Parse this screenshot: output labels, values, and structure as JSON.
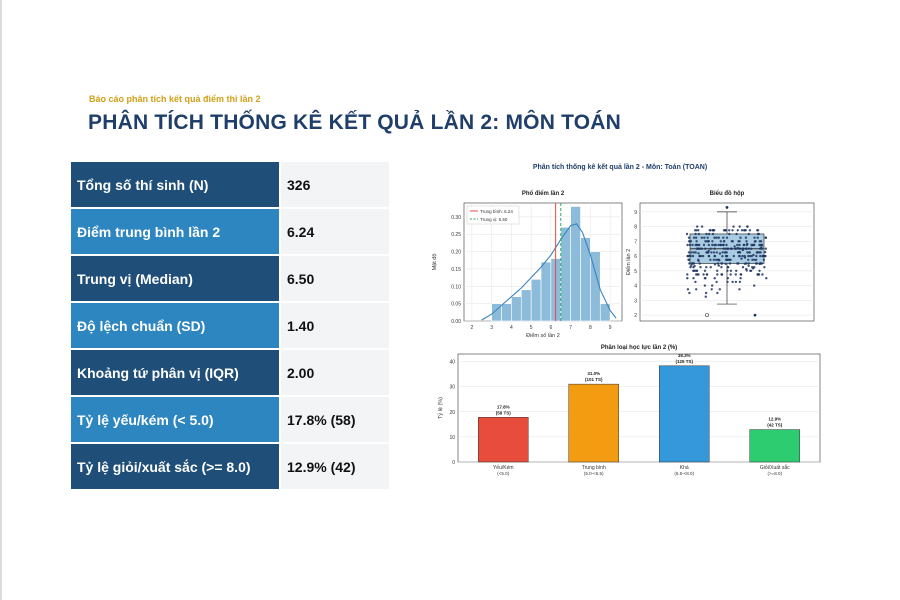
{
  "header": {
    "supertitle": "Báo cáo phân tích kết quả điểm thi lần 2",
    "title": "PHÂN TÍCH THỐNG KÊ KẾT QUẢ LẦN 2: MÔN TOÁN"
  },
  "stats": [
    {
      "label": "Tổng số thí sinh (N)",
      "value": "326",
      "color": "#1f4e79"
    },
    {
      "label": "Điểm trung bình lần 2",
      "value": "6.24",
      "color": "#2e86c1"
    },
    {
      "label": "Trung vị (Median)",
      "value": "6.50",
      "color": "#1f4e79"
    },
    {
      "label": "Độ lệch chuẩn (SD)",
      "value": "1.40",
      "color": "#2e86c1"
    },
    {
      "label": "Khoảng tứ phân vị (IQR)",
      "value": "2.00",
      "color": "#1f4e79"
    },
    {
      "label": "Tỷ lệ yếu/kém (< 5.0)",
      "value": "17.8% (58)",
      "color": "#2e86c1"
    },
    {
      "label": "Tỷ lệ giỏi/xuất sắc (>= 8.0)",
      "value": "12.9% (42)",
      "color": "#1f4e79"
    }
  ],
  "figure_title": "Phân tích thống kê kết quả lần 2 - Môn: Toán (TOAN)",
  "chart_data": [
    {
      "type": "bar",
      "title": "Phổ điểm lần 2",
      "xlabel": "Điểm số lần 2",
      "ylabel": "Mật độ",
      "x_ticks": [
        2,
        3,
        4,
        5,
        6,
        7,
        8,
        9
      ],
      "y_ticks": [
        0.0,
        0.05,
        0.1,
        0.15,
        0.2,
        0.25,
        0.3
      ],
      "y_tick_labels": [
        "0.00",
        "0.05",
        "0.10",
        "0.15",
        "0.20",
        "0.25",
        "0.30"
      ],
      "xlim": [
        1.6,
        9.6
      ],
      "ylim": [
        0,
        0.34
      ],
      "bins": [
        {
          "x0": 3.0,
          "x1": 3.5,
          "density": 0.05
        },
        {
          "x0": 3.5,
          "x1": 4.0,
          "density": 0.05
        },
        {
          "x0": 4.0,
          "x1": 4.5,
          "density": 0.07
        },
        {
          "x0": 4.5,
          "x1": 5.0,
          "density": 0.09
        },
        {
          "x0": 5.0,
          "x1": 5.5,
          "density": 0.12
        },
        {
          "x0": 5.5,
          "x1": 6.0,
          "density": 0.17
        },
        {
          "x0": 6.0,
          "x1": 6.5,
          "density": 0.18
        },
        {
          "x0": 6.5,
          "x1": 7.0,
          "density": 0.27
        },
        {
          "x0": 7.0,
          "x1": 7.5,
          "density": 0.33
        },
        {
          "x0": 7.5,
          "x1": 8.0,
          "density": 0.24
        },
        {
          "x0": 8.0,
          "x1": 8.5,
          "density": 0.2
        },
        {
          "x0": 8.5,
          "x1": 9.0,
          "density": 0.05
        }
      ],
      "kde": [
        [
          2.5,
          0.003
        ],
        [
          3.0,
          0.02
        ],
        [
          3.5,
          0.045
        ],
        [
          4.0,
          0.07
        ],
        [
          4.5,
          0.095
        ],
        [
          5.0,
          0.125
        ],
        [
          5.5,
          0.155
        ],
        [
          6.0,
          0.19
        ],
        [
          6.5,
          0.235
        ],
        [
          7.0,
          0.275
        ],
        [
          7.3,
          0.28
        ],
        [
          7.6,
          0.255
        ],
        [
          8.0,
          0.19
        ],
        [
          8.5,
          0.09
        ],
        [
          9.0,
          0.03
        ],
        [
          9.3,
          0.008
        ]
      ],
      "mean": 6.24,
      "median": 6.5,
      "legend": [
        "Trung bình: 6.24",
        "Trung vị: 6.50"
      ],
      "colors": {
        "bar": "#8dbcdb",
        "kde": "#3b83bd",
        "mean": "#e74c3c",
        "median": "#27ae60"
      }
    },
    {
      "type": "box",
      "title": "Biểu đồ hộp",
      "ylabel": "Điểm lần 2",
      "y_ticks": [
        2,
        3,
        4,
        5,
        6,
        7,
        8,
        9
      ],
      "ylim": [
        1.6,
        9.6
      ],
      "q1": 5.5,
      "median": 6.5,
      "q3": 7.5,
      "whisker_low": 2.75,
      "whisker_high": 9.0,
      "outliers": [
        9.3,
        2.0
      ],
      "colors": {
        "box": "#a9cce3",
        "points": "#1f3560"
      }
    },
    {
      "type": "bar",
      "title": "Phân loại học lực lần 2 (%)",
      "ylabel": "Tỷ lệ (%)",
      "y_ticks": [
        0,
        10,
        20,
        30,
        40
      ],
      "ylim": [
        0,
        43
      ],
      "categories": [
        {
          "name": "Yếu/Kém",
          "range": "(<5.0)",
          "value": 17.8,
          "label": "17.8%",
          "count": "(58 TS)",
          "color": "#e74c3c"
        },
        {
          "name": "Trung bình",
          "range": "(5.0-<6.5)",
          "value": 31.0,
          "label": "31.0%",
          "count": "(101 TS)",
          "color": "#f39c12"
        },
        {
          "name": "Khá",
          "range": "(6.5-<8.0)",
          "value": 38.3,
          "label": "38.3%",
          "count": "(125 TS)",
          "color": "#3498db"
        },
        {
          "name": "Giỏi/Xuất sắc",
          "range": "(>=8.0)",
          "value": 12.9,
          "label": "12.9%",
          "count": "(42 TS)",
          "color": "#2ecc71"
        }
      ]
    }
  ]
}
